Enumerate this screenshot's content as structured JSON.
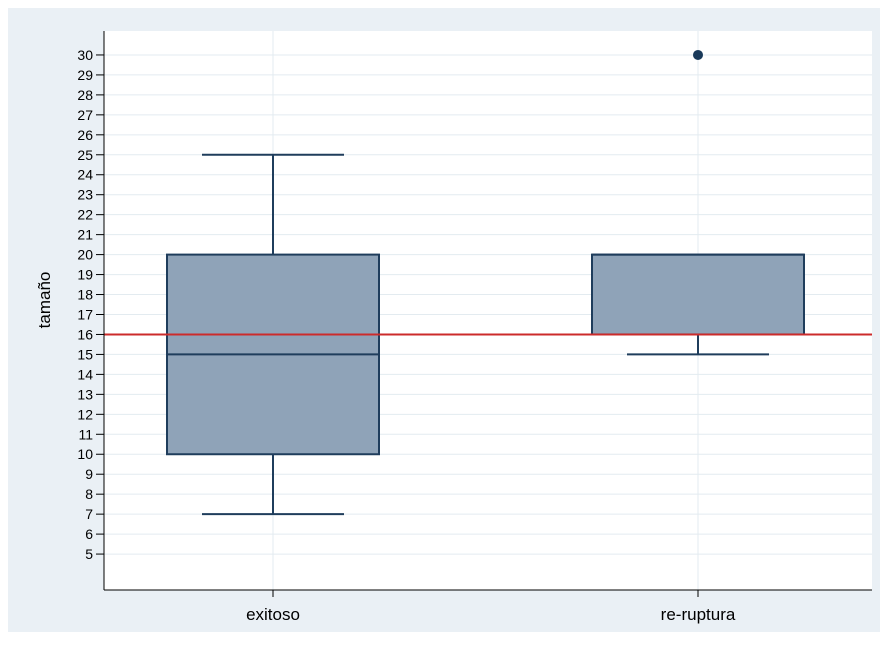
{
  "chart_data": {
    "type": "box",
    "ylabel": "tamaño",
    "xlabel": "",
    "ylim": [
      3.2,
      31.2
    ],
    "yticks": [
      5,
      6,
      7,
      8,
      9,
      10,
      11,
      12,
      13,
      14,
      15,
      16,
      17,
      18,
      19,
      20,
      21,
      22,
      23,
      24,
      25,
      26,
      27,
      28,
      29,
      30
    ],
    "grid": true,
    "reference_line": {
      "y": 16,
      "color": "#cc2b2b"
    },
    "categories": [
      "exitoso",
      "re-ruptura"
    ],
    "boxes": [
      {
        "category": "exitoso",
        "min": 7,
        "q1": 10,
        "median": 15,
        "q3": 20,
        "max": 25,
        "outliers": []
      },
      {
        "category": "re-ruptura",
        "min": 15,
        "q1": 16,
        "median": 20,
        "q3": 20,
        "max": 20,
        "outliers": [
          30
        ]
      }
    ],
    "colors": {
      "outer_background": "#eaf0f5",
      "plot_background": "#ffffff",
      "grid": "#e3ebf0",
      "box_fill": "#8fa3b8",
      "box_stroke": "#1f3d5c",
      "outlier": "#1a3a5a",
      "axis": "#000000"
    }
  }
}
